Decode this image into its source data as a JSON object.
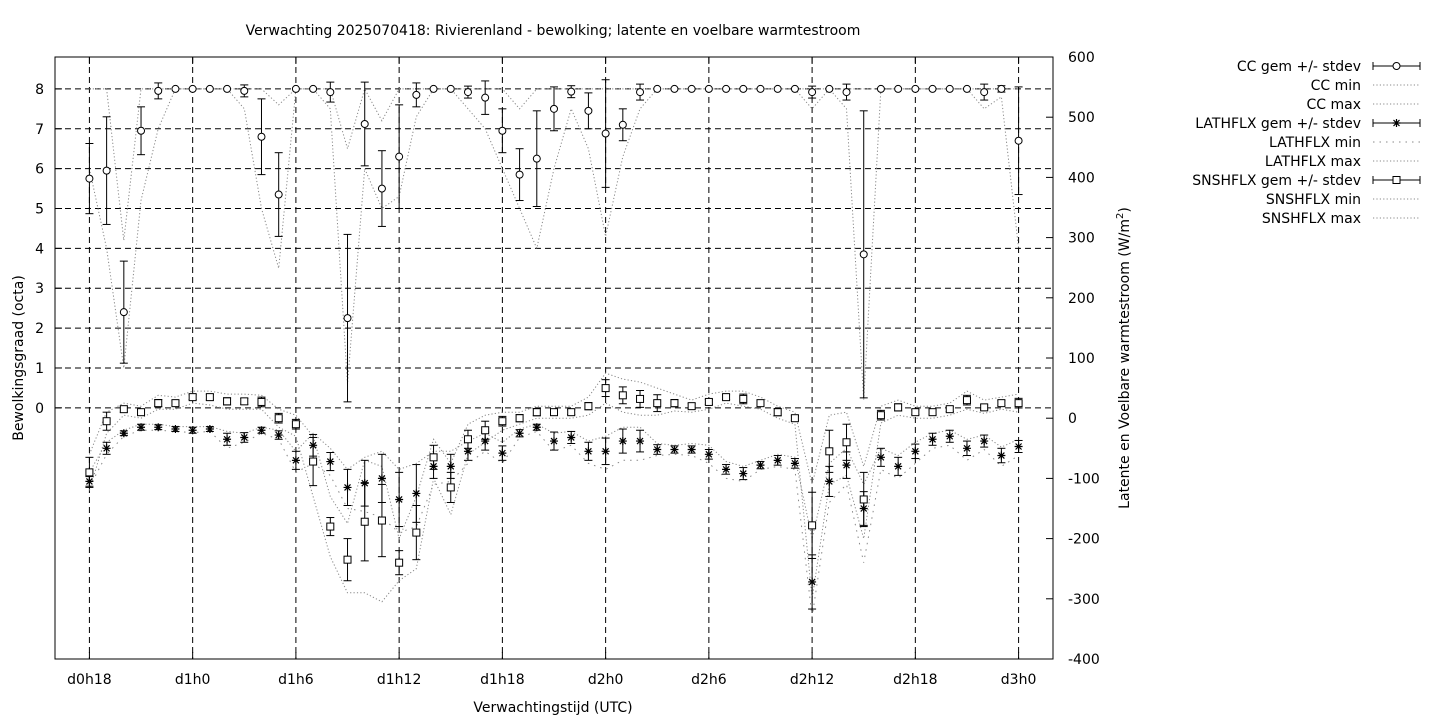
{
  "chart_data": {
    "type": "line",
    "title": "Verwachting 2025070418: Rivierenland - bewolking; latente en voelbare warmtestroom",
    "xlabel": "Verwachtingstijd (UTC)",
    "ylabel": "Bewolkingsgraad (octa)",
    "y2label_main": "Latente en Voelbare warmtestroom (W/m",
    "y2label_sup": "2",
    "y2label_end": ")",
    "grid": true,
    "xlim": [
      16,
      74
    ],
    "ylim": [
      -6.3,
      8.8
    ],
    "y2lim": [
      -400,
      600
    ],
    "x_tick_values": [
      18,
      24,
      30,
      36,
      42,
      48,
      54,
      60,
      66,
      72
    ],
    "x_tick_labels": [
      "d0h18",
      "d1h0",
      "d1h6",
      "d1h12",
      "d1h18",
      "d2h0",
      "d2h6",
      "d2h12",
      "d2h18",
      "d3h0"
    ],
    "y_ticks": [
      0,
      1,
      2,
      3,
      4,
      5,
      6,
      7,
      8
    ],
    "y_tick_labels": [
      "0",
      "1",
      "2",
      "3",
      "4",
      "5",
      "6",
      "7",
      "8"
    ],
    "y2_ticks": [
      -400,
      -300,
      -200,
      -100,
      0,
      100,
      200,
      300,
      400,
      500,
      600
    ],
    "y2_tick_labels": [
      "-400",
      "-300",
      "-200",
      "-100",
      "0",
      "100",
      "200",
      "300",
      "400",
      "500",
      "600"
    ],
    "legend_position": "outside-right-top",
    "legend": [
      {
        "label": "CC gem +/- stdev",
        "style": "errorbar",
        "marker": "circle"
      },
      {
        "label": "CC min",
        "style": "dotted"
      },
      {
        "label": "CC max",
        "style": "dotted"
      },
      {
        "label": "LATHFLX gem +/- stdev",
        "style": "errorbar",
        "marker": "star"
      },
      {
        "label": "LATHFLX min",
        "style": "dotted-sparse"
      },
      {
        "label": "LATHFLX max",
        "style": "dotted"
      },
      {
        "label": "SNSHFLX gem +/- stdev",
        "style": "errorbar",
        "marker": "square"
      },
      {
        "label": "SNSHFLX min",
        "style": "dotted"
      },
      {
        "label": "SNSHFLX max",
        "style": "dotted"
      }
    ],
    "x": [
      18,
      19,
      20,
      21,
      22,
      23,
      24,
      25,
      26,
      27,
      28,
      29,
      30,
      31,
      32,
      33,
      34,
      35,
      36,
      37,
      38,
      39,
      40,
      41,
      42,
      43,
      44,
      45,
      46,
      47,
      48,
      49,
      50,
      51,
      52,
      53,
      54,
      55,
      56,
      57,
      58,
      59,
      60,
      61,
      62,
      63,
      64,
      65,
      66,
      67,
      68,
      69,
      70,
      71,
      72
    ],
    "series": [
      {
        "name": "CC gem +/- stdev",
        "axis": "y",
        "mean": [
          5.75,
          5.95,
          2.4,
          6.95,
          7.95,
          8,
          8,
          8,
          8,
          7.95,
          6.8,
          5.35,
          8,
          8,
          7.92,
          2.25,
          7.12,
          5.5,
          6.3,
          7.85,
          8,
          8,
          7.92,
          7.78,
          6.95,
          5.85,
          6.25,
          7.5,
          7.93,
          7.45,
          6.88,
          7.1,
          7.92,
          8,
          8,
          8,
          8,
          8,
          8,
          8,
          8,
          8,
          7.92,
          8,
          7.92,
          3.85,
          8,
          8,
          8,
          8,
          8,
          8,
          7.92,
          8,
          6.7
        ],
        "stdev": [
          0.88,
          1.35,
          1.28,
          0.6,
          0.2,
          0,
          0,
          0,
          0,
          0.15,
          0.95,
          1.05,
          0,
          0,
          0.25,
          2.1,
          1.05,
          0.95,
          1.3,
          0.3,
          0,
          0,
          0.15,
          0.42,
          0.55,
          0.65,
          1.2,
          0.55,
          0.15,
          0.45,
          1.35,
          0.4,
          0.2,
          0,
          0,
          0,
          0,
          0,
          0,
          0,
          0,
          0,
          0.15,
          0,
          0.2,
          3.6,
          0,
          0,
          0,
          0,
          0,
          0,
          0.2,
          0.08,
          1.35
        ]
      },
      {
        "name": "CC min",
        "axis": "y",
        "values": [
          6,
          4,
          1,
          5.2,
          7,
          8,
          8,
          8,
          8,
          7.5,
          5,
          3.5,
          8,
          8,
          7.5,
          0.6,
          6,
          5,
          5.3,
          7.3,
          8,
          8,
          7.5,
          7,
          6,
          5,
          4,
          6,
          7.5,
          6.5,
          4.3,
          6.3,
          7.5,
          8,
          8,
          8,
          8,
          8,
          8,
          8,
          8,
          8,
          7.5,
          8,
          7.5,
          0.2,
          8,
          8,
          8,
          8,
          8,
          8,
          7.5,
          7.8,
          4
        ]
      },
      {
        "name": "CC max",
        "axis": "y",
        "values": [
          8,
          8,
          4.2,
          8,
          8,
          8,
          8,
          8,
          8,
          8,
          8,
          7.6,
          8,
          8,
          8,
          6.5,
          8,
          7.2,
          8,
          8,
          8,
          8,
          8,
          8,
          8,
          7.5,
          8,
          8,
          8,
          8,
          8,
          8,
          8,
          8,
          8,
          8,
          8,
          8,
          8,
          8,
          8,
          8,
          8,
          8,
          8,
          8,
          8,
          8,
          8,
          8,
          8,
          8,
          8,
          8,
          8
        ]
      },
      {
        "name": "LATHFLX gem +/- stdev",
        "axis": "y2",
        "mean": [
          -105,
          -50,
          -25,
          -15,
          -15,
          -18,
          -20,
          -18,
          -35,
          -32,
          -20,
          -28,
          -70,
          -45,
          -72,
          -115,
          -108,
          -100,
          -135,
          -125,
          -80,
          -80,
          -55,
          -38,
          -58,
          -25,
          -15,
          -38,
          -32,
          -55,
          -55,
          -38,
          -38,
          -52,
          -52,
          -52,
          -60,
          -85,
          -92,
          -78,
          -70,
          -75,
          -272,
          -105,
          -78,
          -150,
          -65,
          -80,
          -55,
          -35,
          -30,
          -50,
          -38,
          -62,
          -47
        ],
        "stdev": [
          8,
          10,
          4,
          5,
          4,
          4,
          5,
          4,
          10,
          8,
          5,
          7,
          15,
          18,
          15,
          30,
          38,
          40,
          45,
          48,
          20,
          20,
          15,
          15,
          12,
          6,
          5,
          15,
          10,
          15,
          22,
          20,
          18,
          8,
          6,
          6,
          8,
          8,
          10,
          6,
          8,
          8,
          45,
          25,
          22,
          28,
          15,
          15,
          12,
          10,
          10,
          12,
          10,
          12,
          10
        ]
      },
      {
        "name": "LATHFLX min",
        "axis": "y2",
        "values": [
          -115,
          -60,
          -30,
          -20,
          -20,
          -22,
          -24,
          -22,
          -50,
          -40,
          -25,
          -35,
          -90,
          -75,
          -95,
          -150,
          -155,
          -165,
          -190,
          -180,
          -110,
          -105,
          -75,
          -55,
          -75,
          -32,
          -22,
          -55,
          -45,
          -75,
          -85,
          -70,
          -70,
          -62,
          -60,
          -62,
          -75,
          -100,
          -105,
          -85,
          -80,
          -85,
          -330,
          -140,
          -110,
          -240,
          -85,
          -100,
          -75,
          -50,
          -45,
          -70,
          -52,
          -80,
          -62
        ]
      },
      {
        "name": "LATHFLX max",
        "axis": "y2",
        "values": [
          -90,
          -40,
          -20,
          -10,
          -10,
          -14,
          -14,
          -14,
          -22,
          -25,
          -15,
          -20,
          -55,
          -25,
          -50,
          -85,
          -65,
          -55,
          -85,
          -75,
          -55,
          -55,
          -38,
          -25,
          -40,
          -18,
          -10,
          -25,
          -22,
          -38,
          -30,
          -15,
          -15,
          -42,
          -45,
          -42,
          -45,
          -72,
          -80,
          -70,
          -60,
          -65,
          -200,
          -75,
          -50,
          -110,
          -50,
          -62,
          -40,
          -25,
          -20,
          -35,
          -28,
          -48,
          -35
        ]
      },
      {
        "name": "SNSHFLX gem +/- stdev",
        "axis": "y2",
        "mean": [
          -90,
          -5,
          15,
          10,
          25,
          25,
          35,
          35,
          28,
          28,
          27,
          0,
          -10,
          -72,
          -180,
          -235,
          -172,
          -170,
          -240,
          -190,
          -65,
          -115,
          -35,
          -20,
          -5,
          0,
          10,
          10,
          10,
          20,
          50,
          38,
          32,
          25,
          25,
          20,
          27,
          35,
          32,
          25,
          10,
          0,
          -178,
          -55,
          -40,
          -135,
          5,
          18,
          10,
          10,
          15,
          30,
          18,
          25,
          25
        ],
        "stdev": [
          25,
          15,
          5,
          4,
          6,
          4,
          4,
          5,
          6,
          5,
          8,
          8,
          8,
          40,
          15,
          35,
          65,
          60,
          20,
          45,
          20,
          25,
          15,
          15,
          8,
          6,
          6,
          4,
          4,
          6,
          14,
          14,
          14,
          14,
          6,
          4,
          4,
          4,
          8,
          4,
          6,
          4,
          55,
          35,
          30,
          45,
          8,
          6,
          4,
          4,
          4,
          8,
          4,
          4,
          8
        ]
      },
      {
        "name": "SNSHFLX min",
        "axis": "y2",
        "values": [
          -120,
          -25,
          5,
          0,
          15,
          15,
          25,
          22,
          15,
          15,
          15,
          -15,
          -30,
          -130,
          -230,
          -290,
          -290,
          -305,
          -270,
          -250,
          -100,
          -160,
          -60,
          -40,
          -20,
          -10,
          0,
          0,
          0,
          5,
          25,
          10,
          5,
          5,
          12,
          10,
          15,
          25,
          20,
          15,
          0,
          -10,
          -300,
          -110,
          -95,
          -200,
          -8,
          5,
          0,
          0,
          5,
          15,
          8,
          15,
          10
        ]
      },
      {
        "name": "SNSHFLX max",
        "axis": "y2",
        "values": [
          -60,
          10,
          25,
          20,
          38,
          35,
          45,
          45,
          40,
          40,
          38,
          15,
          5,
          -30,
          -130,
          -175,
          -70,
          -80,
          -200,
          -130,
          -35,
          -75,
          -10,
          5,
          10,
          10,
          20,
          20,
          20,
          35,
          75,
          65,
          60,
          50,
          40,
          30,
          40,
          45,
          45,
          35,
          20,
          10,
          -110,
          5,
          10,
          -80,
          20,
          30,
          20,
          20,
          25,
          45,
          30,
          35,
          40
        ]
      }
    ]
  }
}
